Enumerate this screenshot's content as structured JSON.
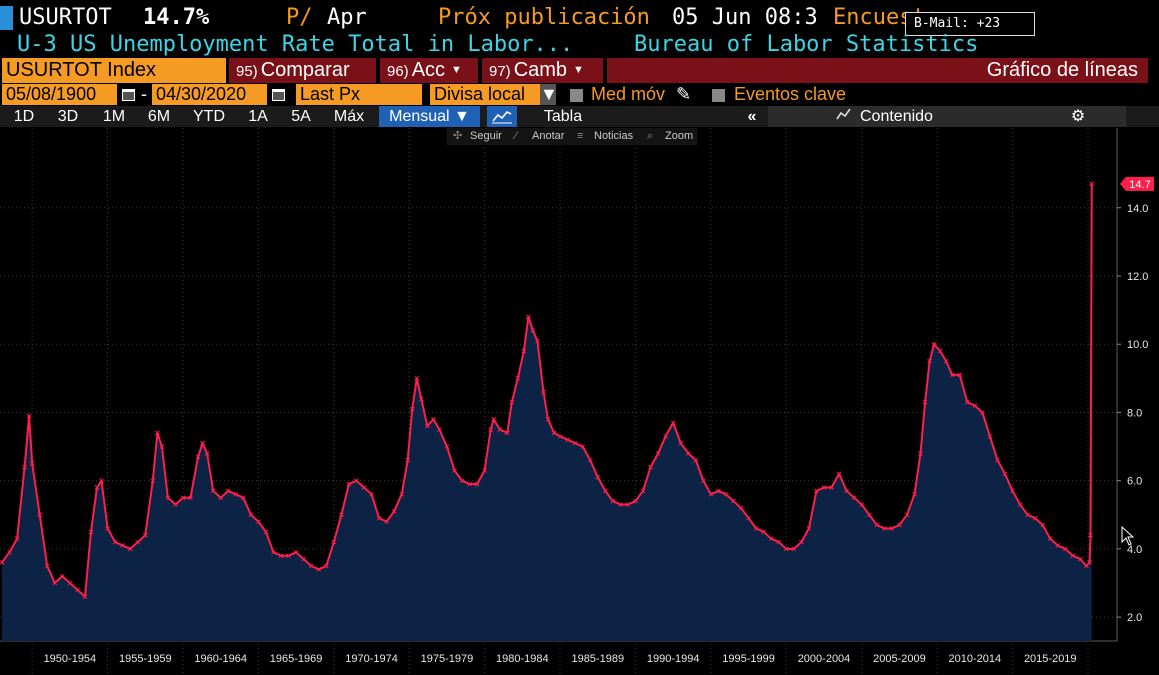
{
  "header": {
    "ticker": "USURTOT",
    "value": "14.7%",
    "period_flag": "P/",
    "period_month": "Apr",
    "next_release_label": "Próx publicación",
    "next_release_date": "05 Jun 08:3",
    "survey_label": "Encuesta",
    "bmail": "B-Mail: +23",
    "description": "U-3 US Unemployment Rate Total in Labor...",
    "source": "Bureau of Labor Statistics"
  },
  "command_bar": {
    "security": "USURTOT Index",
    "compare_num": "95)",
    "compare_label": "Comparar",
    "actions_num": "96)",
    "actions_label": "Acc",
    "change_num": "97)",
    "change_label": "Camb",
    "chart_type": "Gráfico de líneas"
  },
  "settings": {
    "start_date": "05/08/1900",
    "end_date": "04/30/2020",
    "separator": "-",
    "field": "Last Px",
    "currency": "Divisa local",
    "moving_avg_label": "Med móv",
    "key_events_label": "Eventos clave"
  },
  "toolbar": {
    "ranges": [
      "1D",
      "3D",
      "1M",
      "6M",
      "YTD",
      "1A",
      "5A",
      "Máx"
    ],
    "frequency": "Mensual ▼",
    "table_label": "Tabla",
    "collapse_glyph": "«",
    "content_label": "Contenido"
  },
  "chart_tools": {
    "follow": "Seguir",
    "annotate": "Anotar",
    "news": "Noticias",
    "zoom": "Zoom"
  },
  "colors": {
    "line": "#ff1f4b",
    "fill": "#0c2345",
    "grid": "#3a3a3a",
    "accent_orange": "#f59a23",
    "accent_cyan": "#3bd6e6",
    "button_red": "#7a1018",
    "button_blue": "#1f62b5"
  },
  "icons": {
    "calendar": "calendar-icon",
    "pencil": "pencil-icon",
    "settings": "gear-icon",
    "line_chart": "line-chart-icon"
  },
  "chart_data": {
    "type": "area",
    "title": "",
    "xlabel": "",
    "ylabel": "",
    "ylim": [
      1.3,
      15.4
    ],
    "xlim": [
      1948.0,
      2020.6
    ],
    "grid": true,
    "last_value_label": "14.7",
    "x_ticks": [
      1950,
      1955,
      1960,
      1965,
      1970,
      1975,
      1980,
      1985,
      1990,
      1995,
      2000,
      2005,
      2010,
      2015
    ],
    "x_tick_labels": [
      "1950-1954",
      "1955-1959",
      "1960-1964",
      "1965-1969",
      "1970-1974",
      "1975-1979",
      "1980-1984",
      "1985-1989",
      "1990-1994",
      "1995-1999",
      "2000-2004",
      "2005-2009",
      "2010-2014",
      "2015-2019"
    ],
    "y_ticks": [
      2.0,
      4.0,
      6.0,
      8.0,
      10.0,
      12.0,
      14.0
    ],
    "y_tick_labels": [
      "2.0",
      "4.0",
      "6.0",
      "8.0",
      "10.0",
      "12.0",
      "14.0"
    ],
    "series": [
      {
        "x": [
          1948.0,
          1948.5,
          1949.0,
          1949.5,
          1949.8,
          1950.0,
          1950.5,
          1951.0,
          1951.5,
          1952.0,
          1952.5,
          1953.0,
          1953.5,
          1953.9,
          1954.3,
          1954.6,
          1955.0,
          1955.5,
          1956.0,
          1956.5,
          1957.0,
          1957.5,
          1958.0,
          1958.3,
          1958.6,
          1959.0,
          1959.5,
          1960.0,
          1960.5,
          1961.0,
          1961.3,
          1961.6,
          1962.0,
          1962.5,
          1963.0,
          1963.5,
          1964.0,
          1964.5,
          1965.0,
          1965.5,
          1966.0,
          1966.5,
          1967.0,
          1967.5,
          1968.0,
          1968.5,
          1969.0,
          1969.5,
          1970.0,
          1970.5,
          1971.0,
          1971.5,
          1972.0,
          1972.5,
          1973.0,
          1973.5,
          1974.0,
          1974.5,
          1974.9,
          1975.2,
          1975.5,
          1975.8,
          1976.2,
          1976.6,
          1977.0,
          1977.5,
          1978.0,
          1978.5,
          1979.0,
          1979.5,
          1980.0,
          1980.4,
          1980.6,
          1981.0,
          1981.5,
          1981.8,
          1982.2,
          1982.6,
          1982.9,
          1983.2,
          1983.5,
          1983.9,
          1984.2,
          1984.6,
          1985.0,
          1985.5,
          1986.0,
          1986.5,
          1987.0,
          1987.5,
          1988.0,
          1988.5,
          1989.0,
          1989.5,
          1990.0,
          1990.5,
          1991.0,
          1991.5,
          1992.0,
          1992.5,
          1993.0,
          1993.5,
          1994.0,
          1994.5,
          1995.0,
          1995.5,
          1996.0,
          1996.5,
          1997.0,
          1997.5,
          1998.0,
          1998.5,
          1999.0,
          1999.5,
          2000.0,
          2000.5,
          2001.0,
          2001.5,
          2002.0,
          2002.5,
          2003.0,
          2003.5,
          2004.0,
          2004.5,
          2005.0,
          2005.5,
          2006.0,
          2006.5,
          2007.0,
          2007.5,
          2008.0,
          2008.5,
          2008.9,
          2009.2,
          2009.5,
          2009.8,
          2010.2,
          2010.6,
          2011.0,
          2011.5,
          2012.0,
          2012.5,
          2013.0,
          2013.5,
          2014.0,
          2014.5,
          2015.0,
          2015.5,
          2016.0,
          2016.5,
          2017.0,
          2017.5,
          2018.0,
          2018.5,
          2019.0,
          2019.5,
          2019.9,
          2020.1,
          2020.17,
          2020.25
        ],
        "values": [
          3.6,
          3.9,
          4.3,
          6.4,
          7.9,
          6.5,
          5.0,
          3.5,
          3.0,
          3.2,
          3.0,
          2.8,
          2.6,
          4.5,
          5.8,
          6.0,
          4.6,
          4.2,
          4.1,
          4.0,
          4.2,
          4.4,
          6.0,
          7.4,
          7.0,
          5.5,
          5.3,
          5.5,
          5.5,
          6.7,
          7.1,
          6.8,
          5.7,
          5.5,
          5.7,
          5.6,
          5.5,
          5.0,
          4.8,
          4.5,
          3.9,
          3.8,
          3.8,
          3.9,
          3.7,
          3.5,
          3.4,
          3.5,
          4.2,
          5.0,
          5.9,
          6.0,
          5.8,
          5.6,
          4.9,
          4.8,
          5.1,
          5.6,
          6.6,
          8.1,
          9.0,
          8.4,
          7.6,
          7.8,
          7.5,
          7.0,
          6.3,
          6.0,
          5.9,
          5.9,
          6.3,
          7.5,
          7.8,
          7.5,
          7.4,
          8.3,
          9.0,
          9.8,
          10.8,
          10.4,
          10.1,
          8.6,
          7.8,
          7.4,
          7.3,
          7.2,
          7.1,
          7.0,
          6.6,
          6.1,
          5.7,
          5.4,
          5.3,
          5.3,
          5.4,
          5.7,
          6.4,
          6.8,
          7.3,
          7.7,
          7.1,
          6.8,
          6.6,
          6.0,
          5.6,
          5.7,
          5.6,
          5.4,
          5.2,
          4.9,
          4.6,
          4.5,
          4.3,
          4.2,
          4.0,
          4.0,
          4.2,
          4.6,
          5.7,
          5.8,
          5.8,
          6.2,
          5.7,
          5.5,
          5.3,
          5.0,
          4.7,
          4.6,
          4.6,
          4.7,
          5.0,
          5.6,
          6.8,
          8.3,
          9.5,
          10.0,
          9.8,
          9.5,
          9.1,
          9.1,
          8.3,
          8.2,
          8.0,
          7.3,
          6.6,
          6.2,
          5.7,
          5.3,
          5.0,
          4.9,
          4.7,
          4.3,
          4.1,
          4.0,
          3.8,
          3.7,
          3.5,
          3.6,
          4.4,
          14.7
        ]
      }
    ]
  }
}
